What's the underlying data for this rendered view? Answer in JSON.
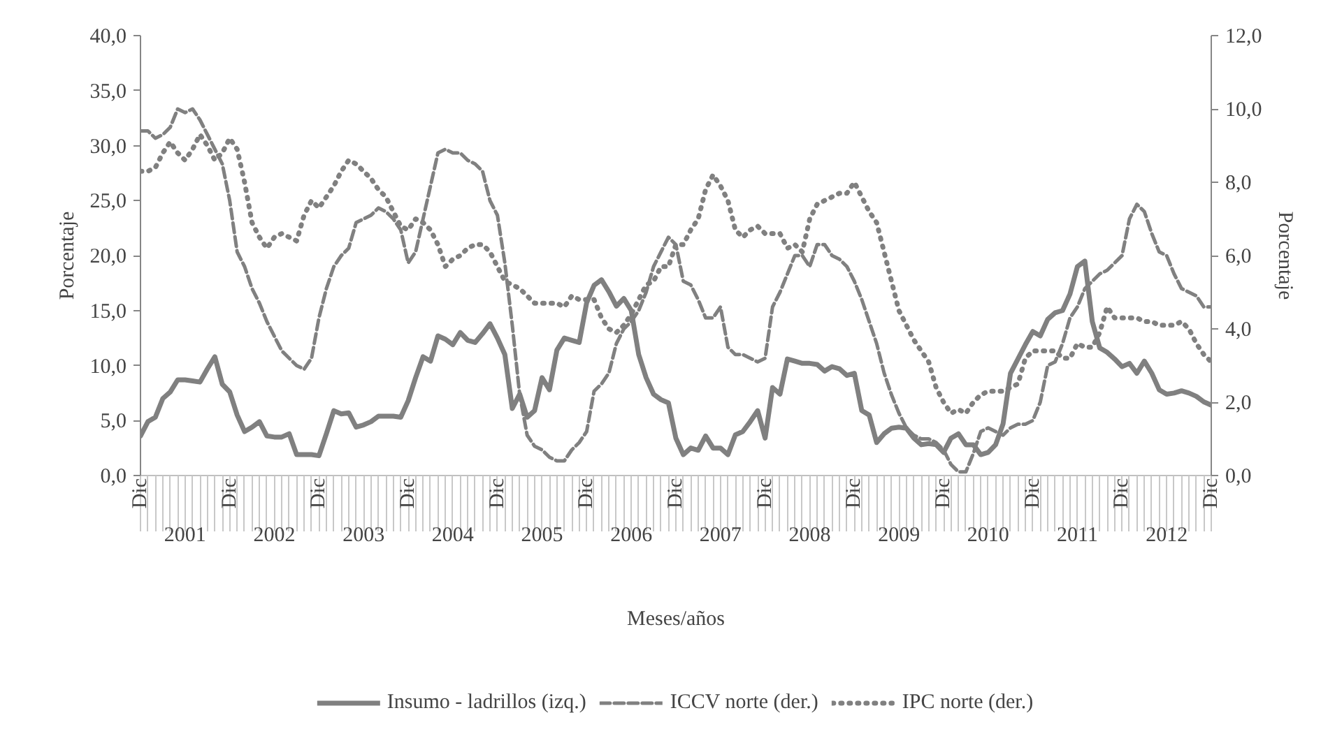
{
  "chart_data": {
    "type": "line",
    "xlabel": "Meses/años",
    "ylabel": "Porcentaje",
    "y2label": "Porcentaje",
    "categories": [
      "Dic",
      null,
      null,
      null,
      null,
      null,
      null,
      null,
      null,
      null,
      null,
      null,
      "Dic",
      null,
      null,
      null,
      null,
      null,
      null,
      null,
      null,
      null,
      null,
      null,
      "Dic",
      null,
      null,
      null,
      null,
      null,
      null,
      null,
      null,
      null,
      null,
      null,
      "Dic",
      null,
      null,
      null,
      null,
      null,
      null,
      null,
      null,
      null,
      null,
      null,
      "Dic",
      null,
      null,
      null,
      null,
      null,
      null,
      null,
      null,
      null,
      null,
      null,
      "Dic",
      null,
      null,
      null,
      null,
      null,
      null,
      null,
      null,
      null,
      null,
      null,
      "Dic",
      null,
      null,
      null,
      null,
      null,
      null,
      null,
      null,
      null,
      null,
      null,
      "Dic",
      null,
      null,
      null,
      null,
      null,
      null,
      null,
      null,
      null,
      null,
      null,
      "Dic",
      null,
      null,
      null,
      null,
      null,
      null,
      null,
      null,
      null,
      null,
      null,
      "Dic",
      null,
      null,
      null,
      null,
      null,
      null,
      null,
      null,
      null,
      null,
      null,
      "Dic",
      null,
      null,
      null,
      null,
      null,
      null,
      null,
      null,
      null,
      null,
      null,
      "Dic",
      null,
      null,
      null,
      null,
      null,
      null,
      null,
      null,
      null,
      null,
      null,
      "Dic"
    ],
    "annotations": [
      "2001",
      "2002",
      "2003",
      "2004",
      "2005",
      "2006",
      "2007",
      "2008",
      "2009",
      "2010",
      "2011",
      "2012"
    ],
    "series": [
      {
        "name": "Insumo - ladrillos (izq.)",
        "color": "#808080",
        "line_style": "solid",
        "values": [
          3.6,
          4.9,
          5.3,
          7.0,
          7.6,
          8.7,
          8.7,
          8.6,
          8.5,
          9.7,
          10.8,
          8.3,
          7.6,
          5.5,
          4.0,
          4.4,
          4.9,
          3.6,
          3.5,
          3.5,
          3.8,
          1.9,
          1.9,
          1.9,
          1.8,
          3.8,
          5.9,
          5.6,
          5.7,
          4.4,
          4.6,
          4.9,
          5.4,
          5.4,
          5.4,
          5.3,
          6.8,
          8.9,
          10.8,
          10.4,
          12.7,
          12.4,
          11.9,
          13.0,
          12.3,
          12.1,
          12.9,
          13.8,
          12.5,
          11.0,
          6.1,
          7.4,
          5.3,
          5.9,
          8.9,
          7.8,
          11.4,
          12.5,
          12.3,
          12.1,
          15.7,
          17.3,
          17.8,
          16.7,
          15.4,
          16.1,
          15.0,
          11.0,
          8.9,
          7.4,
          6.9,
          6.6,
          3.4,
          1.9,
          2.5,
          2.3,
          3.6,
          2.5,
          2.5,
          1.9,
          3.7,
          4.0,
          4.9,
          5.9,
          3.4,
          8.0,
          7.4,
          10.6,
          10.4,
          10.2,
          10.2,
          10.1,
          9.5,
          9.9,
          9.7,
          9.1,
          9.3,
          5.9,
          5.5,
          3.0,
          3.8,
          4.3,
          4.4,
          4.3,
          3.4,
          2.8,
          2.9,
          2.8,
          2.1,
          3.4,
          3.8,
          2.8,
          2.8,
          1.9,
          2.1,
          2.8,
          4.7,
          9.3,
          10.6,
          11.9,
          13.1,
          12.7,
          14.2,
          14.8,
          15.0,
          16.5,
          19.0,
          19.5,
          14.0,
          11.6,
          11.2,
          10.6,
          9.9,
          10.2,
          9.3,
          10.4,
          9.3,
          7.8,
          7.4,
          7.5,
          7.7,
          7.5,
          7.2,
          6.7,
          6.4
        ]
      },
      {
        "name": "ICCV norte (der.)",
        "color": "#808080",
        "line_style": "dashed",
        "axis": "y2",
        "values": [
          9.4,
          9.4,
          9.2,
          9.3,
          9.5,
          10.0,
          9.9,
          10.0,
          9.7,
          9.3,
          8.9,
          8.5,
          7.5,
          6.1,
          5.7,
          5.1,
          4.7,
          4.2,
          3.8,
          3.4,
          3.2,
          3.0,
          2.9,
          3.2,
          4.3,
          5.1,
          5.7,
          6.0,
          6.2,
          6.9,
          7.0,
          7.1,
          7.3,
          7.2,
          7.0,
          6.7,
          5.8,
          6.1,
          7.0,
          7.9,
          8.8,
          8.9,
          8.8,
          8.8,
          8.6,
          8.5,
          8.3,
          7.5,
          7.1,
          5.8,
          4.1,
          2.2,
          1.1,
          0.8,
          0.7,
          0.5,
          0.4,
          0.4,
          0.7,
          0.9,
          1.2,
          2.3,
          2.5,
          2.8,
          3.6,
          4.0,
          4.2,
          4.5,
          5.0,
          5.7,
          6.1,
          6.5,
          6.3,
          5.3,
          5.2,
          4.8,
          4.3,
          4.3,
          4.6,
          3.5,
          3.3,
          3.3,
          3.2,
          3.1,
          3.2,
          4.6,
          5.0,
          5.5,
          6.0,
          6.0,
          5.7,
          6.3,
          6.3,
          6.0,
          5.9,
          5.7,
          5.3,
          4.8,
          4.2,
          3.6,
          2.8,
          2.2,
          1.7,
          1.3,
          1.1,
          1.0,
          1.0,
          0.9,
          0.7,
          0.3,
          0.1,
          0.1,
          0.6,
          1.2,
          1.3,
          1.2,
          1.1,
          1.3,
          1.4,
          1.4,
          1.5,
          2.0,
          3.0,
          3.1,
          3.6,
          4.3,
          4.6,
          5.1,
          5.3,
          5.5,
          5.6,
          5.8,
          6.0,
          7.0,
          7.4,
          7.2,
          6.6,
          6.1,
          6.0,
          5.5,
          5.1,
          5.0,
          4.9,
          4.6,
          4.6
        ]
      },
      {
        "name": "IPC norte (der.)",
        "color": "#808080",
        "line_style": "dotted",
        "axis": "y2",
        "values": [
          8.3,
          8.3,
          8.4,
          8.8,
          9.1,
          8.8,
          8.6,
          8.9,
          9.3,
          9.0,
          8.6,
          8.8,
          9.2,
          8.9,
          8.0,
          6.9,
          6.5,
          6.2,
          6.5,
          6.6,
          6.5,
          6.4,
          7.1,
          7.5,
          7.3,
          7.6,
          7.9,
          8.3,
          8.6,
          8.5,
          8.3,
          8.1,
          7.8,
          7.6,
          7.2,
          6.8,
          6.7,
          7.0,
          6.9,
          6.7,
          6.3,
          5.7,
          5.9,
          6.0,
          6.2,
          6.3,
          6.3,
          6.1,
          5.7,
          5.3,
          5.2,
          5.1,
          4.9,
          4.7,
          4.7,
          4.7,
          4.7,
          4.6,
          4.9,
          4.8,
          4.8,
          4.8,
          4.3,
          4.0,
          3.9,
          4.1,
          4.4,
          4.8,
          5.2,
          5.3,
          5.7,
          5.7,
          6.3,
          6.3,
          6.7,
          7.0,
          7.8,
          8.2,
          7.9,
          7.5,
          6.7,
          6.5,
          6.7,
          6.8,
          6.6,
          6.6,
          6.6,
          6.2,
          6.3,
          6.1,
          7.0,
          7.4,
          7.5,
          7.6,
          7.7,
          7.7,
          8.0,
          7.6,
          7.2,
          6.9,
          6.1,
          5.3,
          4.5,
          4.1,
          3.7,
          3.4,
          3.1,
          2.4,
          2.0,
          1.7,
          1.8,
          1.7,
          2.0,
          2.2,
          2.3,
          2.3,
          2.3,
          2.4,
          2.5,
          3.2,
          3.4,
          3.4,
          3.4,
          3.4,
          3.2,
          3.2,
          3.6,
          3.5,
          3.5,
          3.9,
          4.6,
          4.3,
          4.3,
          4.3,
          4.3,
          4.2,
          4.2,
          4.1,
          4.1,
          4.1,
          4.2,
          4.0,
          3.6,
          3.3,
          3.1
        ]
      }
    ],
    "ylim": [
      0,
      40
    ],
    "yticks": [
      {
        "value": 0,
        "label": "0,0"
      },
      {
        "value": 5,
        "label": "5,0"
      },
      {
        "value": 10,
        "label": "10,0"
      },
      {
        "value": 15,
        "label": "15,0"
      },
      {
        "value": 20,
        "label": "20,0"
      },
      {
        "value": 25,
        "label": "25,0"
      },
      {
        "value": 30,
        "label": "30,0"
      },
      {
        "value": 35,
        "label": "35,0"
      },
      {
        "value": 40,
        "label": "40,0"
      }
    ],
    "y2lim": [
      0,
      12
    ],
    "y2ticks": [
      {
        "value": 0,
        "label": "0,0"
      },
      {
        "value": 2,
        "label": "2,0"
      },
      {
        "value": 4,
        "label": "4,0"
      },
      {
        "value": 6,
        "label": "6,0"
      },
      {
        "value": 8,
        "label": "8,0"
      },
      {
        "value": 10,
        "label": "10,0"
      },
      {
        "value": 12,
        "label": "12,0"
      }
    ],
    "grid": false,
    "legend": "bottom"
  }
}
